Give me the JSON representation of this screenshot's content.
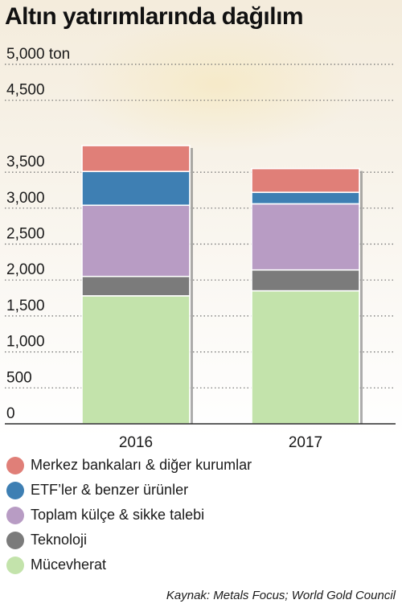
{
  "title": "Altın yatırımlarında dağılım",
  "source": "Kaynak: Metals Focus; World Gold Council",
  "chart_data": {
    "type": "bar",
    "stacked": true,
    "categories": [
      "2016",
      "2017"
    ],
    "yticks": [
      "5,000 ton",
      "4,500",
      "3,500",
      "3,000",
      "2,500",
      "2,000",
      "1,500",
      "1,000",
      "500",
      "0"
    ],
    "ytick_values": [
      5000,
      4500,
      3500,
      3000,
      2500,
      2000,
      1500,
      1000,
      500,
      0
    ],
    "ylim": [
      0,
      5000
    ],
    "grid": true,
    "legend_position": "bottom",
    "series": [
      {
        "name": "Mücevherat",
        "values": [
          1780,
          1850
        ],
        "color": "#c3e3ab"
      },
      {
        "name": "Teknoloji",
        "values": [
          270,
          290
        ],
        "color": "#7b7b7b"
      },
      {
        "name": "Toplam külçe & sikke talebi",
        "values": [
          990,
          920
        ],
        "color": "#b89cc4"
      },
      {
        "name": "ETF’ler & benzer ürünler",
        "values": [
          470,
          160
        ],
        "color": "#3e7fb3"
      },
      {
        "name": "Merkez bankaları & diğer kurumlar",
        "values": [
          360,
          330
        ],
        "color": "#e07f78"
      }
    ]
  }
}
